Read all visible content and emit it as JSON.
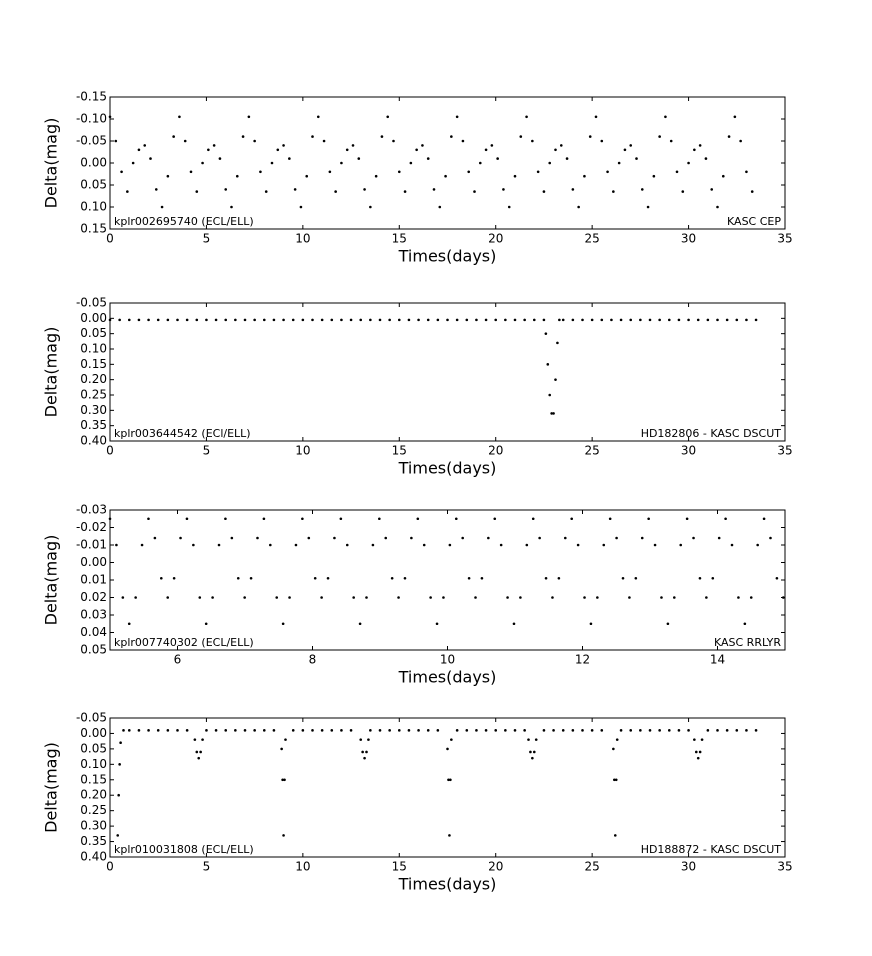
{
  "chart_data": [
    {
      "type": "scatter",
      "x_label": "Times(days)",
      "y_label": "Delta(mag)",
      "annotations": [
        "kplr002695740 (ECL/ELL)",
        "KASC CEP"
      ],
      "color": "#000000",
      "xlim": [
        0,
        35
      ],
      "xticks": [
        0,
        5,
        10,
        15,
        20,
        25,
        30,
        35
      ],
      "ylim": [
        0.15,
        -0.15
      ],
      "yticks": [
        -0.15,
        {
          "value": -0.1,
          "label": "-0.10"
        },
        -0.05,
        {
          "value": 0,
          "label": "0.00"
        },
        0.05,
        {
          "value": 0.1,
          "label": "0.10"
        },
        0.15
      ],
      "x": [
        0,
        0.3,
        0.6,
        0.9,
        1.2,
        1.5,
        1.8,
        2.1,
        2.4,
        2.7,
        3,
        3.3,
        3.6,
        3.9,
        4.2,
        4.5,
        4.8,
        5.1,
        5.4,
        5.7,
        6,
        6.3,
        6.6,
        6.9,
        7.2,
        7.5,
        7.8,
        8.1,
        8.4,
        8.7,
        9,
        9.3,
        9.6,
        9.9,
        10.2,
        10.5,
        10.8,
        11.1,
        11.4,
        11.7,
        12,
        12.3,
        12.6,
        12.9,
        13.2,
        13.5,
        13.8,
        14.1,
        14.4,
        14.7,
        15,
        15.3,
        15.6,
        15.9,
        16.2,
        16.5,
        16.8,
        17.1,
        17.4,
        17.7,
        18,
        18.3,
        18.6,
        18.9,
        19.2,
        19.5,
        19.8,
        20.1,
        20.4,
        20.7,
        21,
        21.3,
        21.6,
        21.9,
        22.2,
        22.5,
        22.8,
        23.1,
        23.4,
        23.7,
        24,
        24.3,
        24.6,
        24.9,
        25.2,
        25.5,
        25.8,
        26.1,
        26.4,
        26.7,
        27,
        27.3,
        27.6,
        27.9,
        28.2,
        28.5,
        28.8,
        29.1,
        29.4,
        29.7,
        30,
        30.3,
        30.6,
        30.9,
        31.2,
        31.5,
        31.8,
        32.1,
        32.4,
        32.7,
        33,
        33.3
      ],
      "values": [
        -0.105,
        -0.05,
        0.02,
        0.065,
        0.0,
        -0.03,
        -0.04,
        -0.01,
        0.06,
        0.1,
        0.03,
        -0.06,
        -0.105,
        -0.05,
        0.02,
        0.065,
        0.0,
        -0.03,
        -0.04,
        -0.01,
        0.06,
        0.1,
        0.03,
        -0.06,
        -0.105,
        -0.05,
        0.02,
        0.065,
        0.0,
        -0.03,
        -0.04,
        -0.01,
        0.06,
        0.1,
        0.03,
        -0.06,
        -0.105,
        -0.05,
        0.02,
        0.065,
        0.0,
        -0.03,
        -0.04,
        -0.01,
        0.06,
        0.1,
        0.03,
        -0.06,
        -0.105,
        -0.05,
        0.02,
        0.065,
        0.0,
        -0.03,
        -0.04,
        -0.01,
        0.06,
        0.1,
        0.03,
        -0.06,
        -0.105,
        -0.05,
        0.02,
        0.065,
        0.0,
        -0.03,
        -0.04,
        -0.01,
        0.06,
        0.1,
        0.03,
        -0.06,
        -0.105,
        -0.05,
        0.02,
        0.065,
        0.0,
        -0.03,
        -0.04,
        -0.01,
        0.06,
        0.1,
        0.03,
        -0.06,
        -0.105,
        -0.05,
        0.02,
        0.065,
        0.0,
        -0.03,
        -0.04,
        -0.01,
        0.06,
        0.1,
        0.03,
        -0.06,
        -0.105,
        -0.05,
        0.02,
        0.065,
        0.0,
        -0.03,
        -0.04,
        -0.01,
        0.06,
        0.1,
        0.03,
        -0.06,
        -0.105,
        -0.05,
        0.02,
        0.065
      ]
    },
    {
      "type": "scatter",
      "x_label": "Times(days)",
      "y_label": "Delta(mag)",
      "annotations": [
        "kplr003644542 (ECl/ELL)",
        "HD182806 - KASC DSCUT"
      ],
      "color": "#000000",
      "xlim": [
        0,
        35
      ],
      "xticks": [
        0,
        5,
        10,
        15,
        20,
        25,
        30,
        35
      ],
      "ylim": [
        0.4,
        -0.05
      ],
      "yticks": [
        -0.05,
        {
          "value": 0,
          "label": "0.00"
        },
        0.05,
        {
          "value": 0.1,
          "label": "0.10"
        },
        0.15,
        {
          "value": 0.2,
          "label": "0.20"
        },
        0.25,
        {
          "value": 0.3,
          "label": "0.30"
        },
        0.35,
        {
          "value": 0.4,
          "label": "0.40"
        }
      ],
      "x": [
        0,
        0.5,
        1,
        1.5,
        2,
        2.5,
        3,
        3.5,
        4,
        4.5,
        5,
        5.5,
        6,
        6.5,
        7,
        7.5,
        8,
        8.5,
        9,
        9.5,
        10,
        10.5,
        11,
        11.5,
        12,
        12.5,
        13,
        13.5,
        14,
        14.5,
        15,
        15.5,
        16,
        16.5,
        17,
        17.5,
        18,
        18.5,
        19,
        19.5,
        20,
        20.5,
        21,
        21.5,
        22,
        22.5,
        22.6,
        22.7,
        22.8,
        22.9,
        23,
        23.1,
        23.2,
        23.3,
        23.5,
        24,
        24.5,
        25,
        25.5,
        26,
        26.5,
        27,
        27.5,
        28,
        28.5,
        29,
        29.5,
        30,
        30.5,
        31,
        31.5,
        32,
        32.5,
        33,
        33.5
      ],
      "values": [
        0.005,
        0.005,
        0.005,
        0.005,
        0.005,
        0.005,
        0.005,
        0.005,
        0.005,
        0.005,
        0.005,
        0.005,
        0.005,
        0.005,
        0.005,
        0.005,
        0.005,
        0.005,
        0.005,
        0.005,
        0.005,
        0.005,
        0.005,
        0.005,
        0.005,
        0.005,
        0.005,
        0.005,
        0.005,
        0.005,
        0.005,
        0.005,
        0.005,
        0.005,
        0.005,
        0.005,
        0.005,
        0.005,
        0.005,
        0.005,
        0.005,
        0.005,
        0.005,
        0.005,
        0.005,
        0.005,
        0.05,
        0.15,
        0.25,
        0.31,
        0.31,
        0.2,
        0.08,
        0.005,
        0.005,
        0.005,
        0.005,
        0.005,
        0.005,
        0.005,
        0.005,
        0.005,
        0.005,
        0.005,
        0.005,
        0.005,
        0.005,
        0.005,
        0.005,
        0.005,
        0.005,
        0.005,
        0.005,
        0.005,
        0.005
      ]
    },
    {
      "type": "scatter",
      "x_label": "Times(days)",
      "y_label": "Delta(mag)",
      "annotations": [
        "kplr007740302 (ECL/ELL)",
        "KASC RRLYR"
      ],
      "color": "#000000",
      "xlim": [
        5,
        15
      ],
      "xticks": [
        6,
        8,
        10,
        12,
        14
      ],
      "ylim": [
        0.05,
        -0.03
      ],
      "yticks": [
        -0.03,
        -0.02,
        -0.01,
        {
          "value": 0,
          "label": "0.00"
        },
        0.01,
        0.02,
        0.03,
        0.04,
        0.05
      ],
      "x": [
        5,
        5.095,
        5.19,
        5.285,
        5.38,
        5.475,
        5.57,
        5.665,
        5.76,
        5.855,
        5.95,
        6.045,
        6.14,
        6.235,
        6.33,
        6.425,
        6.52,
        6.615,
        6.71,
        6.805,
        6.9,
        6.995,
        7.09,
        7.185,
        7.28,
        7.375,
        7.47,
        7.565,
        7.66,
        7.755,
        7.85,
        7.945,
        8.04,
        8.135,
        8.23,
        8.325,
        8.42,
        8.515,
        8.61,
        8.705,
        8.8,
        8.895,
        8.99,
        9.085,
        9.18,
        9.275,
        9.37,
        9.465,
        9.56,
        9.655,
        9.75,
        9.845,
        9.94,
        10.035,
        10.13,
        10.225,
        10.32,
        10.415,
        10.51,
        10.605,
        10.7,
        10.795,
        10.89,
        10.985,
        11.08,
        11.175,
        11.27,
        11.365,
        11.46,
        11.555,
        11.65,
        11.745,
        11.84,
        11.935,
        12.03,
        12.125,
        12.22,
        12.315,
        12.41,
        12.505,
        12.6,
        12.695,
        12.79,
        12.885,
        12.98,
        13.075,
        13.17,
        13.265,
        13.36,
        13.455,
        13.55,
        13.645,
        13.74,
        13.835,
        13.93,
        14.025,
        14.12,
        14.215,
        14.31,
        14.405,
        14.5,
        14.595,
        14.69,
        14.785,
        14.88,
        14.975
      ],
      "values": [
        -0.025,
        -0.01,
        0.02,
        0.035,
        0.02,
        -0.01,
        -0.025,
        -0.014,
        0.009,
        0.02,
        0.009,
        -0.014,
        -0.025,
        -0.01,
        0.02,
        0.035,
        0.02,
        -0.01,
        -0.025,
        -0.014,
        0.009,
        0.02,
        0.009,
        -0.014,
        -0.025,
        -0.01,
        0.02,
        0.035,
        0.02,
        -0.01,
        -0.025,
        -0.014,
        0.009,
        0.02,
        0.009,
        -0.014,
        -0.025,
        -0.01,
        0.02,
        0.035,
        0.02,
        -0.01,
        -0.025,
        -0.014,
        0.009,
        0.02,
        0.009,
        -0.014,
        -0.025,
        -0.01,
        0.02,
        0.035,
        0.02,
        -0.01,
        -0.025,
        -0.014,
        0.009,
        0.02,
        0.009,
        -0.014,
        -0.025,
        -0.01,
        0.02,
        0.035,
        0.02,
        -0.01,
        -0.025,
        -0.014,
        0.009,
        0.02,
        0.009,
        -0.014,
        -0.025,
        -0.01,
        0.02,
        0.035,
        0.02,
        -0.01,
        -0.025,
        -0.014,
        0.009,
        0.02,
        0.009,
        -0.014,
        -0.025,
        -0.01,
        0.02,
        0.035,
        0.02,
        -0.01,
        -0.025,
        -0.014,
        0.009,
        0.02,
        0.009,
        -0.014,
        -0.025,
        -0.01,
        0.02,
        0.035,
        0.02,
        -0.01,
        -0.025,
        -0.014,
        0.009,
        0.02
      ]
    },
    {
      "type": "scatter",
      "x_label": "Times(days)",
      "y_label": "Delta(mag)",
      "annotations": [
        "kplr010031808 (ECL/ELL)",
        "HD188872 - KASC DSCUT"
      ],
      "color": "#000000",
      "xlim": [
        0,
        35
      ],
      "xticks": [
        0,
        5,
        10,
        15,
        20,
        25,
        30,
        35
      ],
      "ylim": [
        0.4,
        -0.05
      ],
      "yticks": [
        -0.05,
        {
          "value": 0,
          "label": "0.00"
        },
        0.05,
        {
          "value": 0.1,
          "label": "0.10"
        },
        0.15,
        {
          "value": 0.2,
          "label": "0.20"
        },
        0.25,
        {
          "value": 0.3,
          "label": "0.30"
        },
        0.35,
        {
          "value": 0.4,
          "label": "0.40"
        }
      ],
      "x": [
        0.4,
        0.45,
        0.5,
        0.55,
        0.7,
        1,
        1.5,
        2,
        2.5,
        3,
        3.5,
        4,
        4.4,
        4.5,
        4.6,
        4.7,
        4.8,
        5,
        5.5,
        6,
        6.5,
        7,
        7.5,
        8,
        8.5,
        8.9,
        8.95,
        9,
        9.05,
        9.1,
        9.5,
        10,
        10.5,
        11,
        11.5,
        12,
        12.5,
        13,
        13.1,
        13.2,
        13.3,
        13.4,
        13.5,
        14,
        14.5,
        15,
        15.5,
        16,
        16.5,
        17,
        17.5,
        17.55,
        17.6,
        17.65,
        17.7,
        18,
        18.5,
        19,
        19.5,
        20,
        20.5,
        21,
        21.5,
        21.7,
        21.8,
        21.9,
        22,
        22.1,
        22.5,
        23,
        23.5,
        24,
        24.5,
        25,
        25.5,
        26.1,
        26.15,
        26.2,
        26.25,
        26.3,
        26.5,
        27,
        27.5,
        28,
        28.5,
        29,
        29.5,
        30,
        30.3,
        30.4,
        30.5,
        30.6,
        30.7,
        31,
        31.5,
        32,
        32.5,
        33,
        33.5
      ],
      "values": [
        0.33,
        0.2,
        0.1,
        0.03,
        -0.01,
        -0.01,
        -0.01,
        -0.01,
        -0.01,
        -0.01,
        -0.01,
        -0.01,
        0.02,
        0.06,
        0.08,
        0.06,
        0.02,
        -0.01,
        -0.01,
        -0.01,
        -0.01,
        -0.01,
        -0.01,
        -0.01,
        -0.01,
        0.05,
        0.15,
        0.33,
        0.15,
        0.02,
        -0.01,
        -0.01,
        -0.01,
        -0.01,
        -0.01,
        -0.01,
        -0.01,
        0.02,
        0.06,
        0.08,
        0.06,
        0.02,
        -0.01,
        -0.01,
        -0.01,
        -0.01,
        -0.01,
        -0.01,
        -0.01,
        -0.01,
        0.05,
        0.15,
        0.33,
        0.15,
        0.02,
        -0.01,
        -0.01,
        -0.01,
        -0.01,
        -0.01,
        -0.01,
        -0.01,
        -0.01,
        0.02,
        0.06,
        0.08,
        0.06,
        0.02,
        -0.01,
        -0.01,
        -0.01,
        -0.01,
        -0.01,
        -0.01,
        -0.01,
        0.05,
        0.15,
        0.33,
        0.15,
        0.02,
        -0.01,
        -0.01,
        -0.01,
        -0.01,
        -0.01,
        -0.01,
        -0.01,
        -0.01,
        0.02,
        0.06,
        0.08,
        0.06,
        0.02,
        -0.01,
        -0.01,
        -0.01,
        -0.01,
        -0.01,
        -0.01
      ]
    }
  ]
}
